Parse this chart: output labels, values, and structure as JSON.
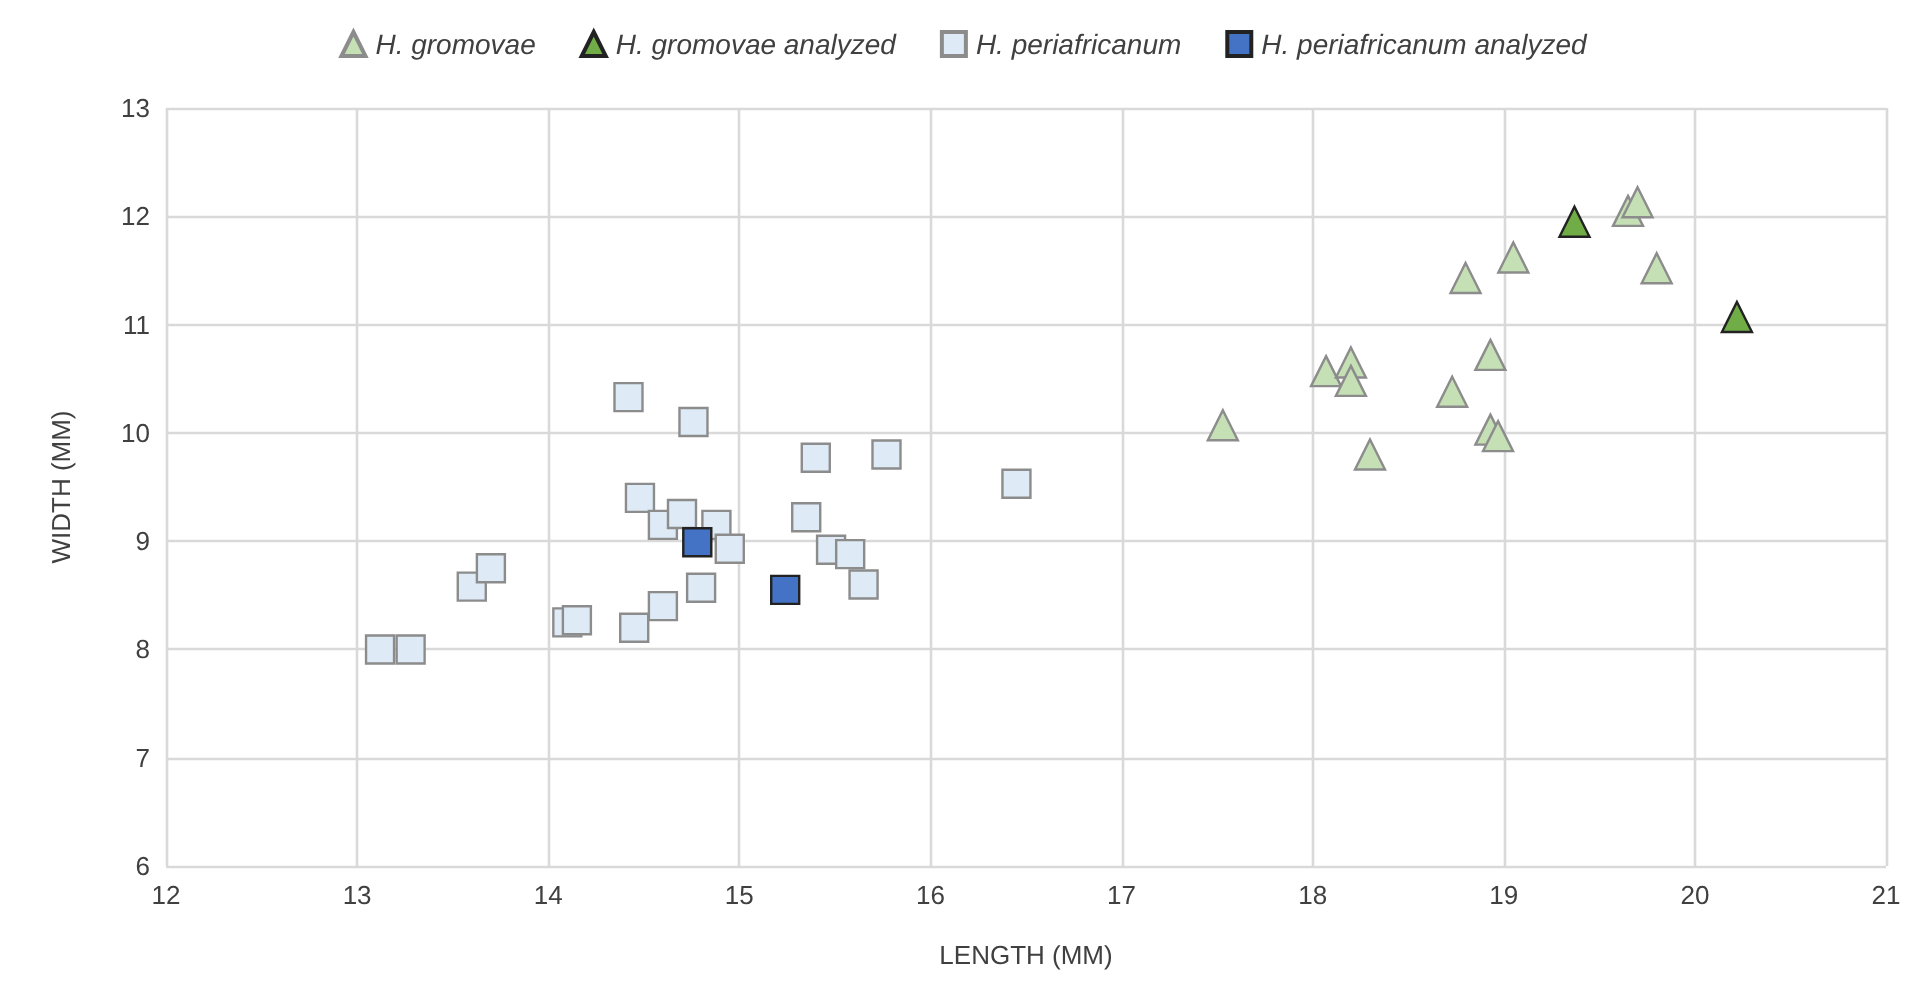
{
  "chart_data": {
    "type": "scatter",
    "xlabel": "LENGTH (MM)",
    "ylabel": "WIDTH (MM)",
    "xlim": [
      12,
      21
    ],
    "ylim": [
      6,
      13
    ],
    "xticks": [
      12,
      13,
      14,
      15,
      16,
      17,
      18,
      19,
      20,
      21
    ],
    "yticks": [
      6,
      7,
      8,
      9,
      10,
      11,
      12,
      13
    ],
    "grid": true,
    "legend": "top",
    "series": [
      {
        "name": "H. gromovae",
        "color": "#c5e0b4",
        "marker": "triangle",
        "x": [
          17.53,
          18.07,
          18.2,
          18.2,
          18.3,
          18.73,
          18.8,
          18.93,
          18.93,
          18.97,
          19.05,
          19.65,
          19.7,
          19.8
        ],
        "values": [
          10.07,
          10.57,
          10.65,
          10.48,
          9.8,
          10.38,
          11.43,
          10.72,
          10.03,
          9.97,
          11.62,
          12.05,
          12.13,
          11.52
        ]
      },
      {
        "name": "H. gromovae analyzed",
        "color": "#70ad47",
        "marker": "triangle",
        "x": [
          19.37,
          20.22
        ],
        "values": [
          11.95,
          11.07
        ]
      },
      {
        "name": "H. periafricanum",
        "color": "#deebf7",
        "marker": "square",
        "x": [
          13.12,
          13.28,
          13.6,
          13.7,
          14.1,
          14.15,
          14.42,
          14.45,
          14.48,
          14.6,
          14.6,
          14.7,
          14.76,
          14.8,
          14.88,
          14.95,
          15.35,
          15.4,
          15.48,
          15.58,
          15.65,
          15.77,
          16.45
        ],
        "values": [
          8.0,
          8.0,
          8.58,
          8.75,
          8.25,
          8.27,
          10.33,
          8.2,
          9.4,
          8.4,
          9.15,
          9.25,
          10.1,
          8.57,
          9.15,
          8.93,
          9.22,
          9.77,
          8.92,
          8.88,
          8.6,
          9.8,
          9.53
        ]
      },
      {
        "name": "H. periafricanum analyzed",
        "color": "#4472c4",
        "marker": "square",
        "x": [
          14.78,
          15.24
        ],
        "values": [
          8.99,
          8.55
        ]
      }
    ]
  }
}
